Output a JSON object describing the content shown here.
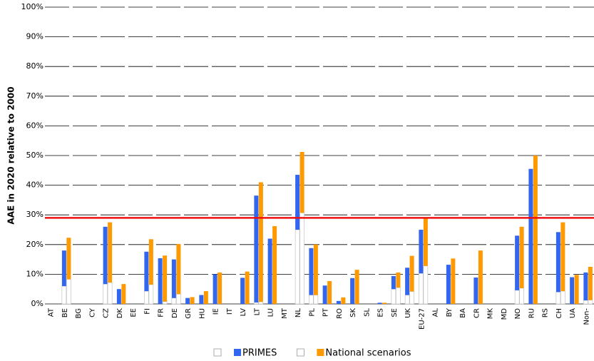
{
  "chart_data": {
    "type": "stacked-pair-bar",
    "y_label": "AAE in 2020 relative to 2000",
    "categories": [
      "AT",
      "BE",
      "BG",
      "CY",
      "CZ",
      "DK",
      "EE",
      "FI",
      "FR",
      "DE",
      "GR",
      "HU",
      "IE",
      "IT",
      "LV",
      "LT",
      "LU",
      "MT",
      "NL",
      "PL",
      "PT",
      "RO",
      "SK",
      "SL",
      "ES",
      "SE",
      "UK",
      "EU-27",
      "AL",
      "BY",
      "BA",
      "CR",
      "MK",
      "MD",
      "NO",
      "RU",
      "RS",
      "CH",
      "UA",
      "Non-"
    ],
    "base_color": "#ffffff",
    "series": [
      {
        "name": "PRIMES",
        "color": "#3366ee",
        "base_values": [
          0,
          6,
          0,
          0,
          6.7,
          0,
          0,
          4.3,
          0,
          2,
          0,
          0,
          0,
          0,
          0,
          0.5,
          0,
          0,
          25,
          3,
          0,
          0,
          0,
          0,
          0,
          5,
          3,
          10.3,
          0,
          0,
          0,
          0,
          0,
          0,
          4.6,
          0,
          0,
          4,
          0,
          1.2
        ],
        "values": [
          0,
          12,
          0,
          0,
          19.3,
          5,
          0,
          13.3,
          15.4,
          13,
          2,
          3,
          10,
          0,
          8.8,
          36,
          22,
          0,
          18.5,
          15.8,
          6.2,
          1,
          8.7,
          0,
          0.4,
          4.4,
          9.2,
          14.7,
          0,
          13.2,
          0,
          8.9,
          0,
          0,
          18.4,
          45.5,
          0,
          20.2,
          9,
          9.4
        ]
      },
      {
        "name": "National scenarios",
        "color": "#ff9900",
        "base_values": [
          0,
          8.3,
          0,
          0,
          7.2,
          0,
          0,
          6.5,
          0.8,
          3.3,
          0,
          0,
          0,
          0,
          0,
          0.7,
          0,
          0,
          30.7,
          3,
          0,
          0,
          0,
          0,
          0,
          5.5,
          4.2,
          12.8,
          0,
          0,
          0,
          0,
          0,
          0,
          5.3,
          0,
          0,
          4.3,
          0,
          1.3
        ],
        "values": [
          0,
          14,
          0,
          0,
          20.3,
          6.7,
          0,
          15.3,
          15.5,
          16.9,
          2.3,
          4.3,
          10.6,
          0,
          10.9,
          40.3,
          26.2,
          0,
          20.5,
          17,
          7.7,
          2.2,
          11.5,
          0,
          0.4,
          5.1,
          12,
          16.4,
          0,
          15.3,
          0,
          18,
          0,
          0,
          20.7,
          50,
          0,
          23.2,
          9.8,
          11.2
        ]
      }
    ],
    "reference_line": 29,
    "reference_color": "#ee1111",
    "ylim": [
      0,
      100
    ],
    "yticks": [
      {
        "value": 0,
        "label": "0%"
      },
      {
        "value": 10,
        "label": "10%"
      },
      {
        "value": 20,
        "label": "20%"
      },
      {
        "value": 30,
        "label": "30%"
      },
      {
        "value": 40,
        "label": "40%"
      },
      {
        "value": 50,
        "label": "50%"
      },
      {
        "value": 60,
        "label": "60%"
      },
      {
        "value": 70,
        "label": "70%"
      },
      {
        "value": 80,
        "label": "80%"
      },
      {
        "value": 90,
        "label": "90%"
      },
      {
        "value": 100,
        "label": "100%"
      }
    ],
    "grid": true
  }
}
